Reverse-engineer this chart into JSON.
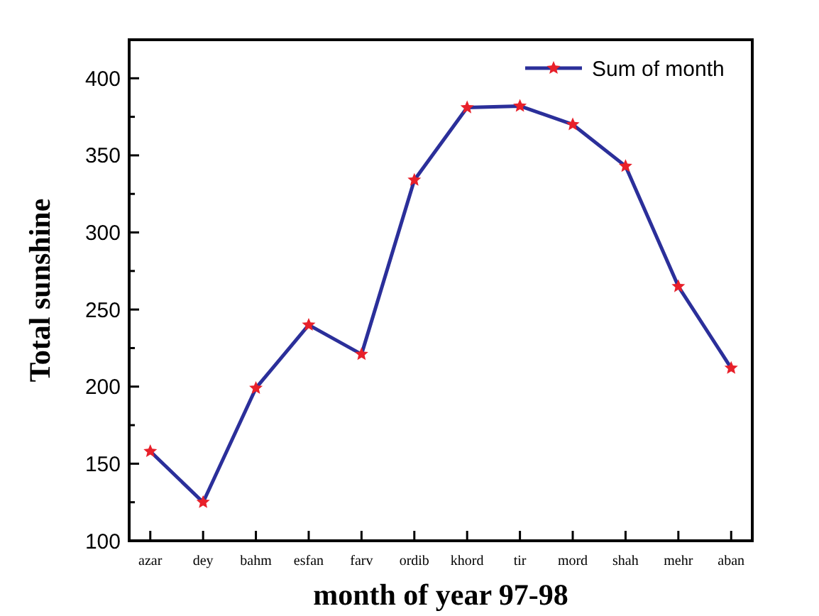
{
  "chart_data": {
    "type": "line",
    "xlabel": "month of year 97-98",
    "ylabel": "Total sunshine",
    "categories": [
      "azar",
      "dey",
      "bahm",
      "esfan",
      "farv",
      "ordib",
      "khord",
      "tir",
      "mord",
      "shah",
      "mehr",
      "aban"
    ],
    "series": [
      {
        "name": "Sum of month",
        "color": "#2b2f9a",
        "values": [
          158,
          125,
          199,
          240,
          221,
          334,
          381,
          382,
          370,
          343,
          265,
          212
        ]
      }
    ],
    "marker": "star",
    "line_style": "solid",
    "legend": "top right",
    "grid": false,
    "ylim": [
      100,
      425
    ],
    "yticks": [
      100,
      {
        "value": 125,
        "label": null
      },
      150,
      {
        "value": 175,
        "label": null
      },
      200,
      {
        "value": 225,
        "label": null
      },
      250,
      {
        "value": 275,
        "label": null
      },
      300,
      {
        "value": 325,
        "label": null
      },
      350,
      {
        "value": 375,
        "label": null
      },
      400
    ]
  }
}
